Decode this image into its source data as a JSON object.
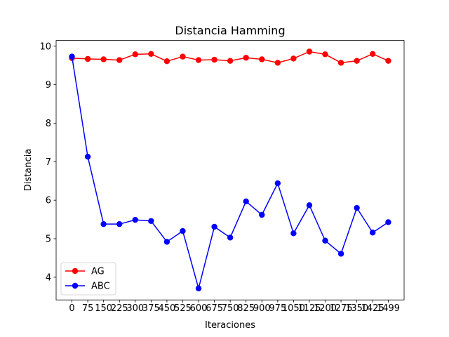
{
  "chart_data": {
    "type": "line",
    "title": "Distancia Hamming",
    "xlabel": "Iteraciones",
    "ylabel": "Distancia",
    "x": [
      0,
      75,
      150,
      225,
      300,
      375,
      450,
      525,
      600,
      675,
      750,
      825,
      900,
      975,
      1050,
      1125,
      1200,
      1275,
      1350,
      1425,
      1499
    ],
    "x_tick_labels": [
      "0",
      "75",
      "150",
      "225",
      "300",
      "375",
      "450",
      "525",
      "600",
      "675",
      "750",
      "825",
      "900",
      "975",
      "1050",
      "1125",
      "1200",
      "1275",
      "1350",
      "1425",
      "1499"
    ],
    "y_ticks": [
      4,
      5,
      6,
      7,
      8,
      9,
      10
    ],
    "ylim": [
      3.41,
      10.15
    ],
    "grid": false,
    "legend_position": "lower-left",
    "series": [
      {
        "name": "AG",
        "color": "#ff0000",
        "marker": "circle",
        "values": [
          9.69,
          9.67,
          9.66,
          9.64,
          9.79,
          9.8,
          9.61,
          9.73,
          9.64,
          9.65,
          9.62,
          9.7,
          9.66,
          9.57,
          9.68,
          9.86,
          9.79,
          9.57,
          9.62,
          9.8,
          9.62
        ]
      },
      {
        "name": "ABC",
        "color": "#0000ff",
        "marker": "circle",
        "values": [
          9.73,
          7.13,
          5.38,
          5.38,
          5.49,
          5.46,
          4.92,
          5.2,
          3.71,
          5.31,
          5.03,
          5.97,
          5.62,
          6.44,
          5.14,
          5.87,
          4.95,
          4.61,
          5.8,
          5.16,
          5.43
        ]
      }
    ]
  }
}
